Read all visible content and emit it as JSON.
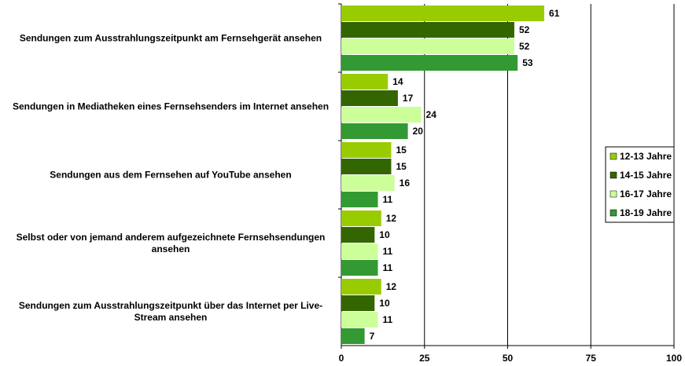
{
  "chart_data": {
    "type": "barh",
    "categories": [
      "Sendungen zum Ausstrahlungszeitpunkt  am Fernsehgerät ansehen",
      "Sendungen in Mediatheken  eines Fernsehsenders  im Internet ansehen",
      "Sendungen aus dem Fernsehen  auf YouTube ansehen",
      "Selbst oder  von jemand anderem  aufgezeichnete Fernsehsendungen  ansehen",
      "Sendungen zum Ausstrahlungszeitpunkt  über das Internet per Live-Stream  ansehen"
    ],
    "series": [
      {
        "name": "12-13 Jahre",
        "color": "#99cc00",
        "values": [
          61,
          14,
          15,
          12,
          12
        ]
      },
      {
        "name": "14-15 Jahre",
        "color": "#336600",
        "values": [
          52,
          17,
          15,
          10,
          10
        ]
      },
      {
        "name": "16-17 Jahre",
        "color": "#ccff99",
        "values": [
          52,
          24,
          16,
          11,
          11
        ]
      },
      {
        "name": "18-19 Jahre",
        "color": "#339933",
        "values": [
          53,
          20,
          11,
          11,
          7
        ]
      }
    ],
    "xlim": [
      0,
      100
    ],
    "xticks": [
      0,
      25,
      50,
      75,
      100
    ],
    "grid": true,
    "legend": "right"
  }
}
